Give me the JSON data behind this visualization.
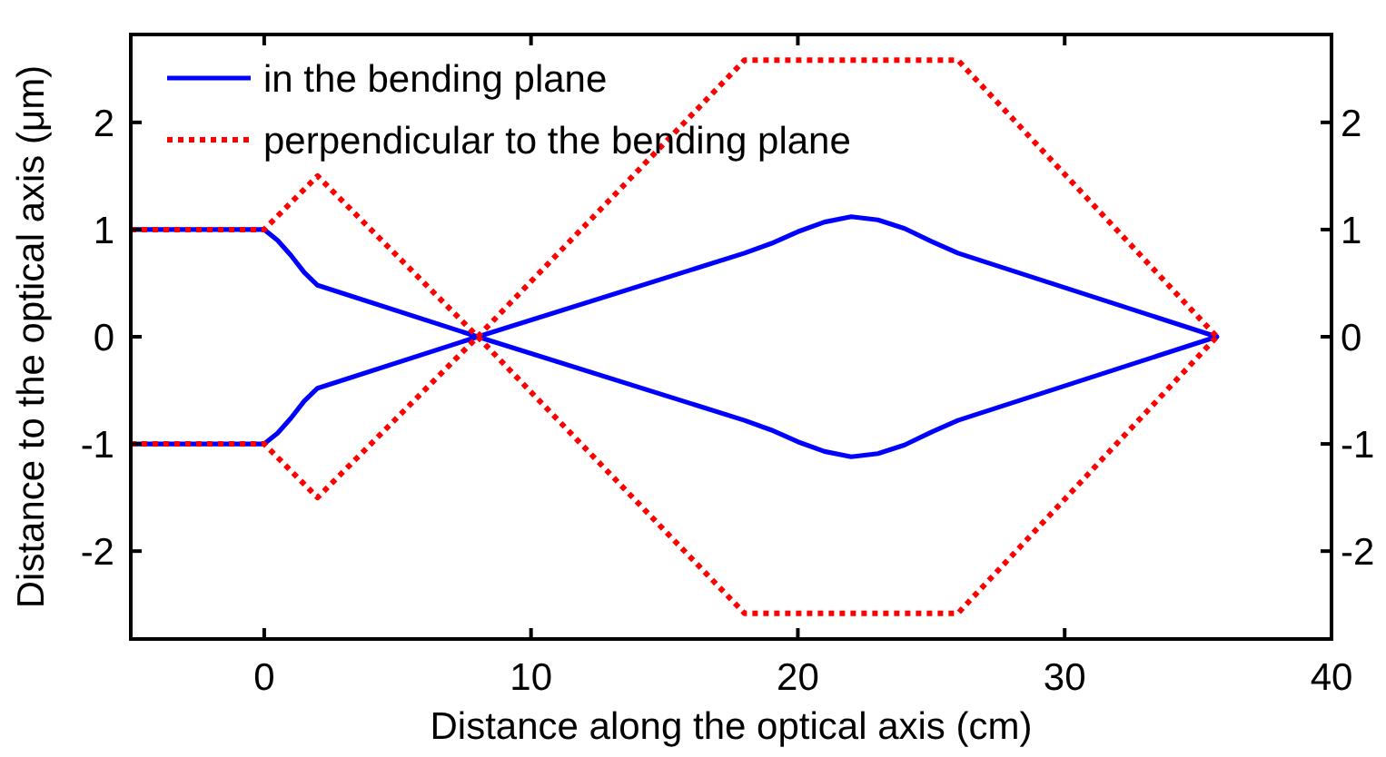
{
  "chart_data": {
    "type": "line",
    "xlabel": "Distance along the optical axis (cm)",
    "ylabel": "Distance to the optical axis (μm)",
    "xlim": [
      -5,
      40
    ],
    "xticks": [
      0,
      10,
      20,
      30,
      40
    ],
    "ylim": [
      -2.82,
      2.82
    ],
    "yticks": [
      -2,
      -1,
      0,
      1,
      2
    ],
    "y2lim": [
      -2.82,
      2.82
    ],
    "y2ticks": [
      -2,
      -1,
      0,
      1,
      2
    ],
    "legend": "top left",
    "series": [
      {
        "name": "in the bending plane",
        "color": "#0000ff",
        "line_style": "solid",
        "x": [
          -5,
          0,
          0.5,
          1,
          1.5,
          2,
          8,
          18,
          19,
          20,
          21,
          22,
          23,
          24,
          25,
          26,
          35.7
        ],
        "values": [
          1,
          1,
          0.9,
          0.76,
          0.6,
          0.48,
          0,
          -0.78,
          -0.87,
          -0.98,
          -1.07,
          -1.12,
          -1.09,
          -1.01,
          -0.89,
          -0.78,
          0
        ]
      },
      {
        "color": "#0000ff",
        "line_style": "solid",
        "x": [
          -5,
          0,
          0.5,
          1,
          1.5,
          2,
          8,
          18,
          19,
          20,
          21,
          22,
          23,
          24,
          25,
          26,
          35.7
        ],
        "values": [
          -1,
          -1,
          -0.9,
          -0.76,
          -0.6,
          -0.48,
          0,
          0.78,
          0.87,
          0.98,
          1.07,
          1.12,
          1.09,
          1.01,
          0.89,
          0.78,
          0
        ]
      },
      {
        "name": "perpendicular to the bending plane",
        "color": "#ff0000",
        "line_style": "dotted",
        "x": [
          -5,
          0,
          2,
          8,
          18,
          26,
          35.7
        ],
        "values": [
          1,
          1,
          1.5,
          0,
          -2.58,
          -2.58,
          0
        ]
      },
      {
        "color": "#ff0000",
        "line_style": "dotted",
        "x": [
          -5,
          0,
          2,
          8,
          18,
          26,
          35.7
        ],
        "values": [
          -1,
          -1,
          -1.5,
          0,
          2.58,
          2.58,
          0
        ]
      }
    ]
  }
}
